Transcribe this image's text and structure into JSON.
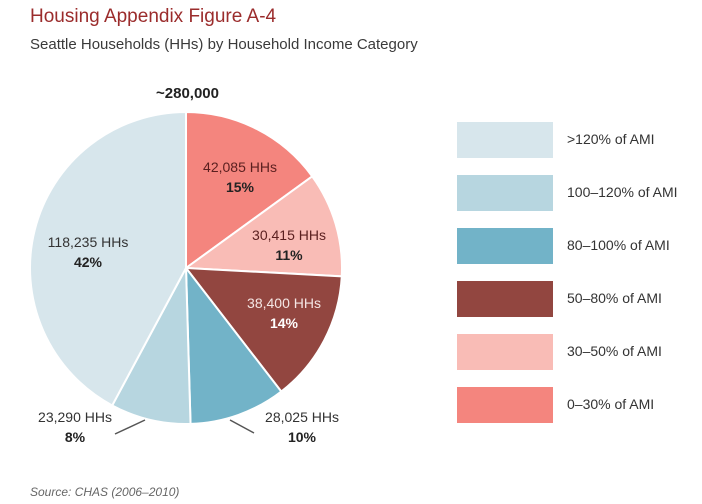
{
  "header": {
    "title": "Housing Appendix Figure A-4",
    "subtitle": "Seattle Households (HHs) by Household Income Category",
    "total_label": "~280,000"
  },
  "footer": {
    "source": "Source: CHAS (2006–2010)"
  },
  "chart_data": {
    "type": "pie",
    "title": "Housing Appendix Figure A-4",
    "subtitle": "Seattle Households (HHs) by Household Income Category",
    "total": "~280,000",
    "legend_position": "right",
    "slices": [
      {
        "name": "0–30% of AMI",
        "value": 42085,
        "value_label": "42,085 HHs",
        "percent_label": "15%",
        "color": "#f4857e"
      },
      {
        "name": "30–50% of AMI",
        "value": 30415,
        "value_label": "30,415 HHs",
        "percent_label": "11%",
        "color": "#f9bcb6"
      },
      {
        "name": "50–80% of AMI",
        "value": 38400,
        "value_label": "38,400 HHs",
        "percent_label": "14%",
        "color": "#924640"
      },
      {
        "name": "80–100% of AMI",
        "value": 28025,
        "value_label": "28,025 HHs",
        "percent_label": "10%",
        "color": "#72b3c8"
      },
      {
        "name": "100–120% of AMI",
        "value": 23290,
        "value_label": "23,290 HHs",
        "percent_label": "8%",
        "color": "#b7d6e0"
      },
      {
        "name": ">120% of AMI",
        "value": 118235,
        "value_label": "118,235 HHs",
        "percent_label": "42%",
        "color": "#d7e6ec"
      }
    ],
    "legend_order": [
      ">120% of AMI",
      "100–120% of AMI",
      "80–100% of AMI",
      "50–80% of AMI",
      "30–50% of AMI",
      "0–30% of AMI"
    ]
  }
}
